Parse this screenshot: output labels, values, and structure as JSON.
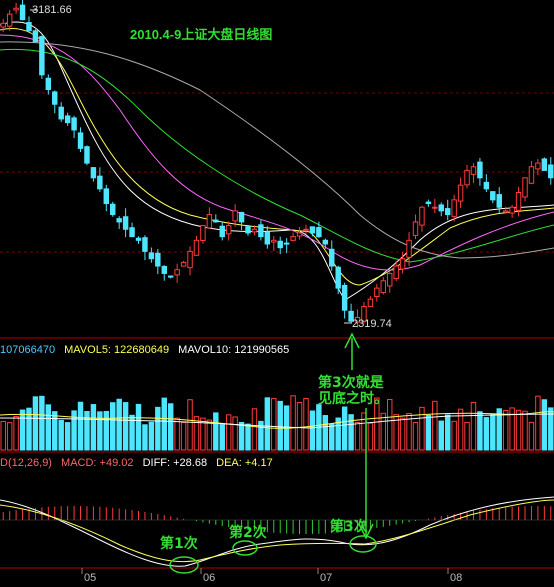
{
  "title": "2010.4-9上证大盘日线图",
  "high_label": "3181.66",
  "low_label": "2319.74",
  "volume_legend": [
    {
      "text": "107066470",
      "color": "#4ec9ff"
    },
    {
      "text": "MAVOL5: 122680649",
      "color": "#ffff55"
    },
    {
      "text": "MAVOL10: 121990565",
      "color": "#ffffff"
    }
  ],
  "macd_legend": [
    {
      "text": "D(12,26,9)",
      "color": "#ff6666"
    },
    {
      "text": "MACD: +49.02",
      "color": "#ff6666"
    },
    {
      "text": "DIFF: +28.68",
      "color": "#ffffff"
    },
    {
      "text": "DEA: +4.17",
      "color": "#ffff55"
    }
  ],
  "annotations": {
    "line1": "第3次就是",
    "line2": "见底之时。",
    "cross1": "第1次",
    "cross2": "第2次",
    "cross3": "第3次"
  },
  "months": [
    "05",
    "06",
    "07",
    "08"
  ],
  "colors": {
    "up": "#ff3b3b",
    "down": "#4ee6ff",
    "annotation": "#33dd33",
    "separator": "#b00000"
  },
  "chart_data": {
    "type": "candlestick",
    "high": 3181.66,
    "low": 2319.74,
    "close_series": [
      3140,
      3165,
      3181,
      3150,
      3120,
      3090,
      3000,
      2960,
      2920,
      2880,
      2870,
      2850,
      2800,
      2760,
      2720,
      2690,
      2650,
      2620,
      2600,
      2580,
      2560,
      2550,
      2520,
      2500,
      2480,
      2460,
      2450,
      2470,
      2490,
      2520,
      2550,
      2590,
      2620,
      2600,
      2560,
      2590,
      2630,
      2600,
      2570,
      2580,
      2560,
      2540,
      2550,
      2530,
      2540,
      2560,
      2570,
      2580,
      2570,
      2560,
      2540,
      2480,
      2420,
      2360,
      2330,
      2340,
      2370,
      2390,
      2420,
      2440,
      2460,
      2480,
      2500,
      2550,
      2600,
      2640,
      2650,
      2640,
      2630,
      2620,
      2660,
      2700,
      2740,
      2750,
      2720,
      2690,
      2660,
      2640,
      2630,
      2640,
      2680,
      2720,
      2750,
      2760,
      2740,
      2720
    ]
  }
}
